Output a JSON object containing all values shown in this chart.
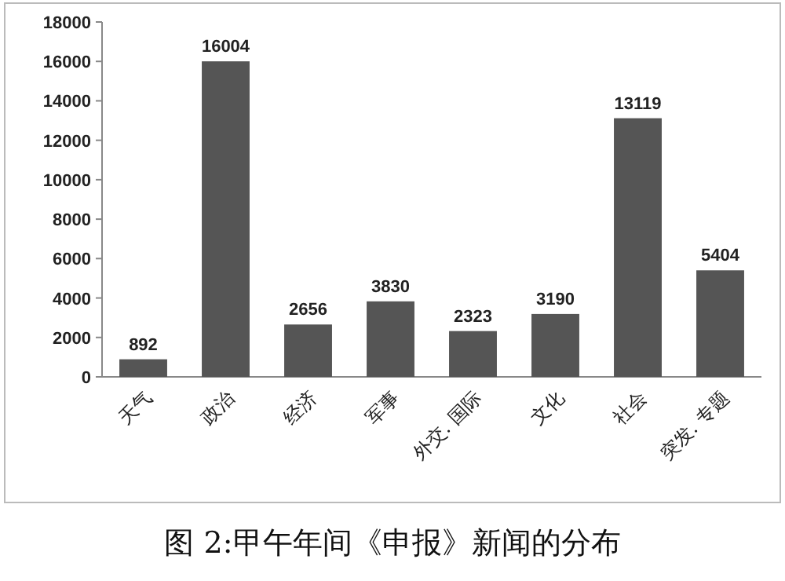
{
  "chart_data": {
    "type": "bar",
    "categories": [
      "天气",
      "政治",
      "经济",
      "军事",
      "外交. 国际",
      "文化",
      "社会",
      "突发. 专题"
    ],
    "values": [
      892,
      16004,
      2656,
      3830,
      2323,
      3190,
      13119,
      5404
    ],
    "color": "#555555",
    "ylim": [
      0,
      18000
    ],
    "yticks": [
      0,
      2000,
      4000,
      6000,
      8000,
      10000,
      12000,
      14000,
      16000,
      18000
    ],
    "data_labels": true,
    "annotations": [
      "图 2:甲午年间《申报》新闻的分布"
    ]
  }
}
